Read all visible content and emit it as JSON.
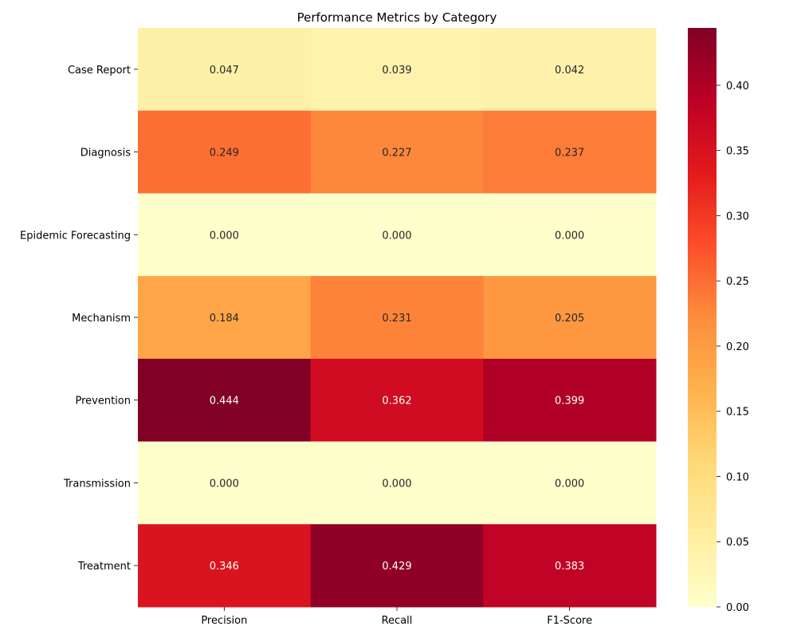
{
  "chart_data": {
    "type": "heatmap",
    "title": "Performance Metrics by Category",
    "xlabel": "",
    "ylabel": "",
    "columns": [
      "Precision",
      "Recall",
      "F1-Score"
    ],
    "rows": [
      "Case Report",
      "Diagnosis",
      "Epidemic Forecasting",
      "Mechanism",
      "Prevention",
      "Transmission",
      "Treatment"
    ],
    "values": [
      [
        0.047,
        0.039,
        0.042
      ],
      [
        0.249,
        0.227,
        0.237
      ],
      [
        0.0,
        0.0,
        0.0
      ],
      [
        0.184,
        0.231,
        0.205
      ],
      [
        0.444,
        0.362,
        0.399
      ],
      [
        0.0,
        0.0,
        0.0
      ],
      [
        0.346,
        0.429,
        0.383
      ]
    ],
    "value_format": "0.000",
    "colormap": "YlOrRd",
    "colorbar": {
      "vmin": 0.0,
      "vmax": 0.444,
      "ticks": [
        0.0,
        0.05,
        0.1,
        0.15,
        0.2,
        0.25,
        0.3,
        0.35,
        0.4
      ],
      "tick_labels": [
        "0.00",
        "0.05",
        "0.10",
        "0.15",
        "0.20",
        "0.25",
        "0.30",
        "0.35",
        "0.40"
      ]
    },
    "colormap_stops": [
      "#ffffcc",
      "#ffeda0",
      "#fed976",
      "#feb24c",
      "#fd8d3c",
      "#fc4e2a",
      "#e31a1c",
      "#bd0026",
      "#800026"
    ]
  }
}
